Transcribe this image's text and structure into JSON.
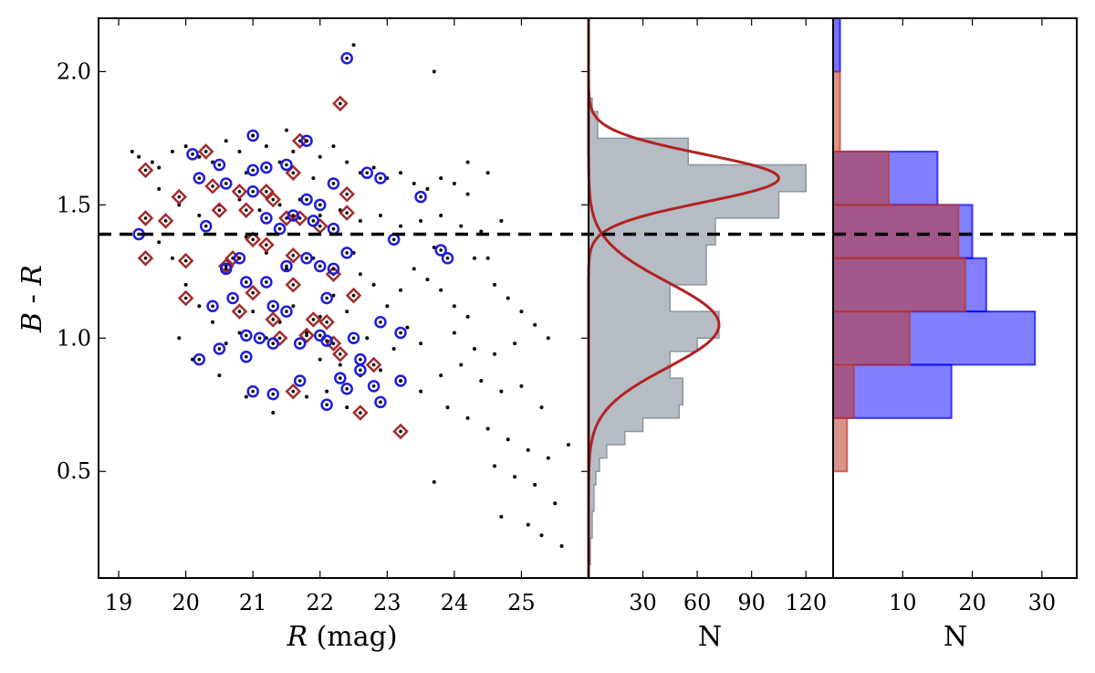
{
  "chart_data": [
    {
      "type": "scatter",
      "panel": "color-magnitude",
      "xlabel_var": "R",
      "xlabel_unit": " (mag)",
      "ylabel_var1": "B",
      "ylabel_sep": " - ",
      "ylabel_var2": "R",
      "xlim": [
        18.7,
        26.0
      ],
      "ylim": [
        0.1,
        2.2
      ],
      "xticks": [
        19,
        20,
        21,
        22,
        23,
        24,
        25
      ],
      "yticks": [
        0.5,
        1.0,
        1.5,
        2.0
      ],
      "ytick_labels": [
        "0.5",
        "1.0",
        "1.5",
        "2.0"
      ],
      "threshold_y": 1.39,
      "colors": {
        "black": "#000000",
        "red": "#a52a2a",
        "blue": "#1c1ce0",
        "gray": "#a8b0b8"
      },
      "series": [
        {
          "marker": "dot",
          "points": [
            [
              19.2,
              1.7
            ],
            [
              19.3,
              1.68
            ],
            [
              19.5,
              1.66
            ],
            [
              19.6,
              1.64
            ],
            [
              19.8,
              1.7
            ],
            [
              20.0,
              1.72
            ],
            [
              20.2,
              1.68
            ],
            [
              20.4,
              1.66
            ],
            [
              20.6,
              1.74
            ],
            [
              20.8,
              1.7
            ],
            [
              21.0,
              1.76
            ],
            [
              21.2,
              1.72
            ],
            [
              21.4,
              1.66
            ],
            [
              21.6,
              1.7
            ],
            [
              21.8,
              1.74
            ],
            [
              22.0,
              1.68
            ],
            [
              22.2,
              1.72
            ],
            [
              22.4,
              1.66
            ],
            [
              22.6,
              1.62
            ],
            [
              22.8,
              1.64
            ],
            [
              23.0,
              1.6
            ],
            [
              23.2,
              1.62
            ],
            [
              23.4,
              1.58
            ],
            [
              23.6,
              1.56
            ],
            [
              23.8,
              1.6
            ],
            [
              24.0,
              1.58
            ],
            [
              24.2,
              1.54
            ],
            [
              19.6,
              1.56
            ],
            [
              19.9,
              1.5
            ],
            [
              20.2,
              1.46
            ],
            [
              20.5,
              1.5
            ],
            [
              20.8,
              1.52
            ],
            [
              21.1,
              1.48
            ],
            [
              21.4,
              1.5
            ],
            [
              21.7,
              1.52
            ],
            [
              22.0,
              1.46
            ],
            [
              22.3,
              1.48
            ],
            [
              22.6,
              1.44
            ],
            [
              22.9,
              1.46
            ],
            [
              23.2,
              1.42
            ],
            [
              23.5,
              1.44
            ],
            [
              23.8,
              1.46
            ],
            [
              24.1,
              1.42
            ],
            [
              24.4,
              1.4
            ],
            [
              24.7,
              1.44
            ],
            [
              24.5,
              1.3
            ],
            [
              24.6,
              1.2
            ],
            [
              24.8,
              1.15
            ],
            [
              25.0,
              1.1
            ],
            [
              25.2,
              1.05
            ],
            [
              25.4,
              1.0
            ],
            [
              24.2,
              1.08
            ],
            [
              24.0,
              1.12
            ],
            [
              23.8,
              1.18
            ],
            [
              23.6,
              1.22
            ],
            [
              23.4,
              1.26
            ],
            [
              23.2,
              1.18
            ],
            [
              23.0,
              1.12
            ],
            [
              22.8,
              1.2
            ],
            [
              22.6,
              1.24
            ],
            [
              22.4,
              1.1
            ],
            [
              22.2,
              1.16
            ],
            [
              22.0,
              1.08
            ],
            [
              21.8,
              1.02
            ],
            [
              21.6,
              1.12
            ],
            [
              21.4,
              1.06
            ],
            [
              21.2,
              1.0
            ],
            [
              21.0,
              1.1
            ],
            [
              20.8,
              1.02
            ],
            [
              20.6,
              0.98
            ],
            [
              20.4,
              1.06
            ],
            [
              20.2,
              1.12
            ],
            [
              20.0,
              1.2
            ],
            [
              19.8,
              1.3
            ],
            [
              19.6,
              1.36
            ],
            [
              22.0,
              0.92
            ],
            [
              22.3,
              0.9
            ],
            [
              22.6,
              0.86
            ],
            [
              22.9,
              0.88
            ],
            [
              23.2,
              0.84
            ],
            [
              23.5,
              0.8
            ],
            [
              23.8,
              0.86
            ],
            [
              24.1,
              0.9
            ],
            [
              24.4,
              0.84
            ],
            [
              24.7,
              0.8
            ],
            [
              25.0,
              0.82
            ],
            [
              25.3,
              0.74
            ],
            [
              23.9,
              0.74
            ],
            [
              24.2,
              0.7
            ],
            [
              24.5,
              0.66
            ],
            [
              24.8,
              0.62
            ],
            [
              25.1,
              0.58
            ],
            [
              25.4,
              0.55
            ],
            [
              25.7,
              0.6
            ],
            [
              24.6,
              0.52
            ],
            [
              24.9,
              0.48
            ],
            [
              25.2,
              0.45
            ],
            [
              25.5,
              0.38
            ],
            [
              24.7,
              0.33
            ],
            [
              25.1,
              0.3
            ],
            [
              25.3,
              0.26
            ],
            [
              25.6,
              0.22
            ],
            [
              23.7,
              0.46
            ],
            [
              22.4,
              0.74
            ],
            [
              22.1,
              0.8
            ],
            [
              21.8,
              0.78
            ],
            [
              21.3,
              0.72
            ],
            [
              20.9,
              0.78
            ],
            [
              20.5,
              0.86
            ],
            [
              20.1,
              0.92
            ],
            [
              19.9,
              1.0
            ],
            [
              24.0,
              1.02
            ],
            [
              24.3,
              0.96
            ],
            [
              24.6,
              0.94
            ],
            [
              24.9,
              0.98
            ],
            [
              23.5,
              0.98
            ],
            [
              23.3,
              1.04
            ],
            [
              23.1,
              0.96
            ],
            [
              22.7,
              1.0
            ],
            [
              21.5,
              1.26
            ],
            [
              21.2,
              1.32
            ],
            [
              20.9,
              1.38
            ],
            [
              21.9,
              1.3
            ],
            [
              22.5,
              1.32
            ],
            [
              23.7,
              1.34
            ],
            [
              24.3,
              1.3
            ],
            [
              24.2,
              1.66
            ],
            [
              24.5,
              1.62
            ],
            [
              23.7,
              2.0
            ],
            [
              22.5,
              2.1
            ],
            [
              21.5,
              1.78
            ],
            [
              21.9,
              1.6
            ],
            [
              20.9,
              1.62
            ]
          ]
        },
        {
          "marker": "diamond",
          "points": [
            [
              19.4,
              1.63
            ],
            [
              19.4,
              1.45
            ],
            [
              19.7,
              1.44
            ],
            [
              19.4,
              1.3
            ],
            [
              19.9,
              1.53
            ],
            [
              20.0,
              1.29
            ],
            [
              20.0,
              1.15
            ],
            [
              20.3,
              1.7
            ],
            [
              20.4,
              1.57
            ],
            [
              20.5,
              1.48
            ],
            [
              20.6,
              1.27
            ],
            [
              20.8,
              1.55
            ],
            [
              20.8,
              1.1
            ],
            [
              20.9,
              1.48
            ],
            [
              21.0,
              1.37
            ],
            [
              21.0,
              1.17
            ],
            [
              21.2,
              1.55
            ],
            [
              21.2,
              1.35
            ],
            [
              21.3,
              1.52
            ],
            [
              21.3,
              1.07
            ],
            [
              21.5,
              1.45
            ],
            [
              21.6,
              1.31
            ],
            [
              21.6,
              1.62
            ],
            [
              21.6,
              1.2
            ],
            [
              21.7,
              1.74
            ],
            [
              21.7,
              1.45
            ],
            [
              21.8,
              1.01
            ],
            [
              21.9,
              1.07
            ],
            [
              22.0,
              1.42
            ],
            [
              22.1,
              1.06
            ],
            [
              22.2,
              1.24
            ],
            [
              22.2,
              0.98
            ],
            [
              22.3,
              1.88
            ],
            [
              22.4,
              1.54
            ],
            [
              22.4,
              1.47
            ],
            [
              22.3,
              0.94
            ],
            [
              22.6,
              0.72
            ],
            [
              22.8,
              0.9
            ],
            [
              23.2,
              0.65
            ],
            [
              21.6,
              0.8
            ],
            [
              21.4,
              1.0
            ],
            [
              20.7,
              1.3
            ],
            [
              22.5,
              1.16
            ]
          ]
        },
        {
          "marker": "circle",
          "points": [
            [
              19.3,
              1.39
            ],
            [
              20.1,
              1.69
            ],
            [
              20.2,
              1.6
            ],
            [
              20.2,
              0.92
            ],
            [
              20.3,
              1.42
            ],
            [
              20.4,
              1.12
            ],
            [
              20.5,
              1.65
            ],
            [
              20.5,
              0.96
            ],
            [
              20.6,
              1.58
            ],
            [
              20.6,
              1.26
            ],
            [
              20.7,
              1.15
            ],
            [
              20.8,
              1.3
            ],
            [
              20.9,
              1.01
            ],
            [
              20.9,
              1.21
            ],
            [
              20.9,
              0.93
            ],
            [
              21.0,
              1.63
            ],
            [
              21.0,
              1.55
            ],
            [
              21.0,
              0.8
            ],
            [
              21.1,
              1.0
            ],
            [
              21.2,
              1.64
            ],
            [
              21.2,
              1.45
            ],
            [
              21.2,
              1.21
            ],
            [
              21.3,
              1.12
            ],
            [
              21.3,
              0.98
            ],
            [
              21.3,
              0.79
            ],
            [
              21.4,
              1.41
            ],
            [
              21.5,
              1.27
            ],
            [
              21.5,
              1.65
            ],
            [
              21.5,
              1.1
            ],
            [
              21.6,
              1.46
            ],
            [
              21.7,
              0.98
            ],
            [
              21.7,
              0.84
            ],
            [
              21.8,
              1.3
            ],
            [
              21.8,
              1.52
            ],
            [
              21.9,
              1.44
            ],
            [
              22.0,
              1.5
            ],
            [
              22.0,
              1.27
            ],
            [
              22.0,
              1.01
            ],
            [
              22.1,
              1.15
            ],
            [
              22.1,
              0.99
            ],
            [
              22.1,
              0.75
            ],
            [
              22.2,
              1.58
            ],
            [
              22.2,
              1.41
            ],
            [
              22.2,
              1.26
            ],
            [
              22.3,
              0.85
            ],
            [
              22.4,
              2.05
            ],
            [
              22.4,
              1.32
            ],
            [
              22.4,
              0.81
            ],
            [
              22.5,
              1.0
            ],
            [
              22.6,
              0.92
            ],
            [
              22.6,
              0.88
            ],
            [
              22.7,
              1.62
            ],
            [
              22.8,
              0.82
            ],
            [
              22.9,
              1.6
            ],
            [
              22.9,
              1.06
            ],
            [
              22.9,
              0.76
            ],
            [
              23.1,
              1.37
            ],
            [
              23.2,
              1.02
            ],
            [
              23.2,
              0.84
            ],
            [
              23.5,
              1.53
            ],
            [
              23.8,
              1.33
            ],
            [
              23.9,
              1.3
            ],
            [
              21.8,
              1.74
            ],
            [
              21.0,
              1.76
            ]
          ]
        }
      ]
    },
    {
      "type": "bar",
      "panel": "gray-histogram",
      "orientation": "horizontal",
      "xlabel": "N",
      "xlim": [
        0,
        135
      ],
      "xticks": [
        30,
        60,
        90,
        120
      ],
      "bin_edges": [
        0.15,
        0.2,
        0.25,
        0.3,
        0.35,
        0.4,
        0.45,
        0.5,
        0.55,
        0.6,
        0.65,
        0.7,
        0.75,
        0.8,
        0.85,
        0.9,
        0.95,
        1.0,
        1.05,
        1.1,
        1.15,
        1.2,
        1.25,
        1.3,
        1.35,
        1.4,
        1.45,
        1.5,
        1.55,
        1.6,
        1.65,
        1.7,
        1.75,
        1.8,
        1.85,
        1.9
      ],
      "counts": [
        1,
        1,
        2,
        2,
        3,
        3,
        4,
        6,
        10,
        20,
        30,
        50,
        52,
        52,
        45,
        45,
        60,
        72,
        72,
        45,
        45,
        65,
        65,
        65,
        70,
        70,
        105,
        105,
        120,
        120,
        55,
        55,
        5,
        5,
        2
      ],
      "gauss_fits": [
        {
          "mu": 1.05,
          "sigma": 0.16,
          "amp": 72
        },
        {
          "mu": 1.6,
          "sigma": 0.09,
          "amp": 105
        }
      ]
    },
    {
      "type": "bar",
      "panel": "color-histogram",
      "orientation": "horizontal",
      "xlabel": "N",
      "xlim": [
        0,
        35
      ],
      "xticks": [
        10,
        20,
        30
      ],
      "bin_edges": [
        0.5,
        0.7,
        0.9,
        1.1,
        1.3,
        1.5,
        1.7
      ],
      "series": [
        {
          "color": "#0000ff",
          "opacity": 0.5,
          "counts": [
            0,
            17,
            29,
            22,
            20,
            15
          ]
        },
        {
          "color": "#c0392b",
          "opacity": 0.55,
          "counts": [
            2,
            3,
            11,
            19,
            18,
            8
          ]
        }
      ],
      "top_bins": [
        {
          "color": "#0000ff",
          "ymin": 2.0,
          "ymax": 2.2,
          "n": 1
        },
        {
          "color": "#c0392b",
          "ymin": 1.7,
          "ymax": 2.0,
          "n": 1
        }
      ]
    }
  ]
}
